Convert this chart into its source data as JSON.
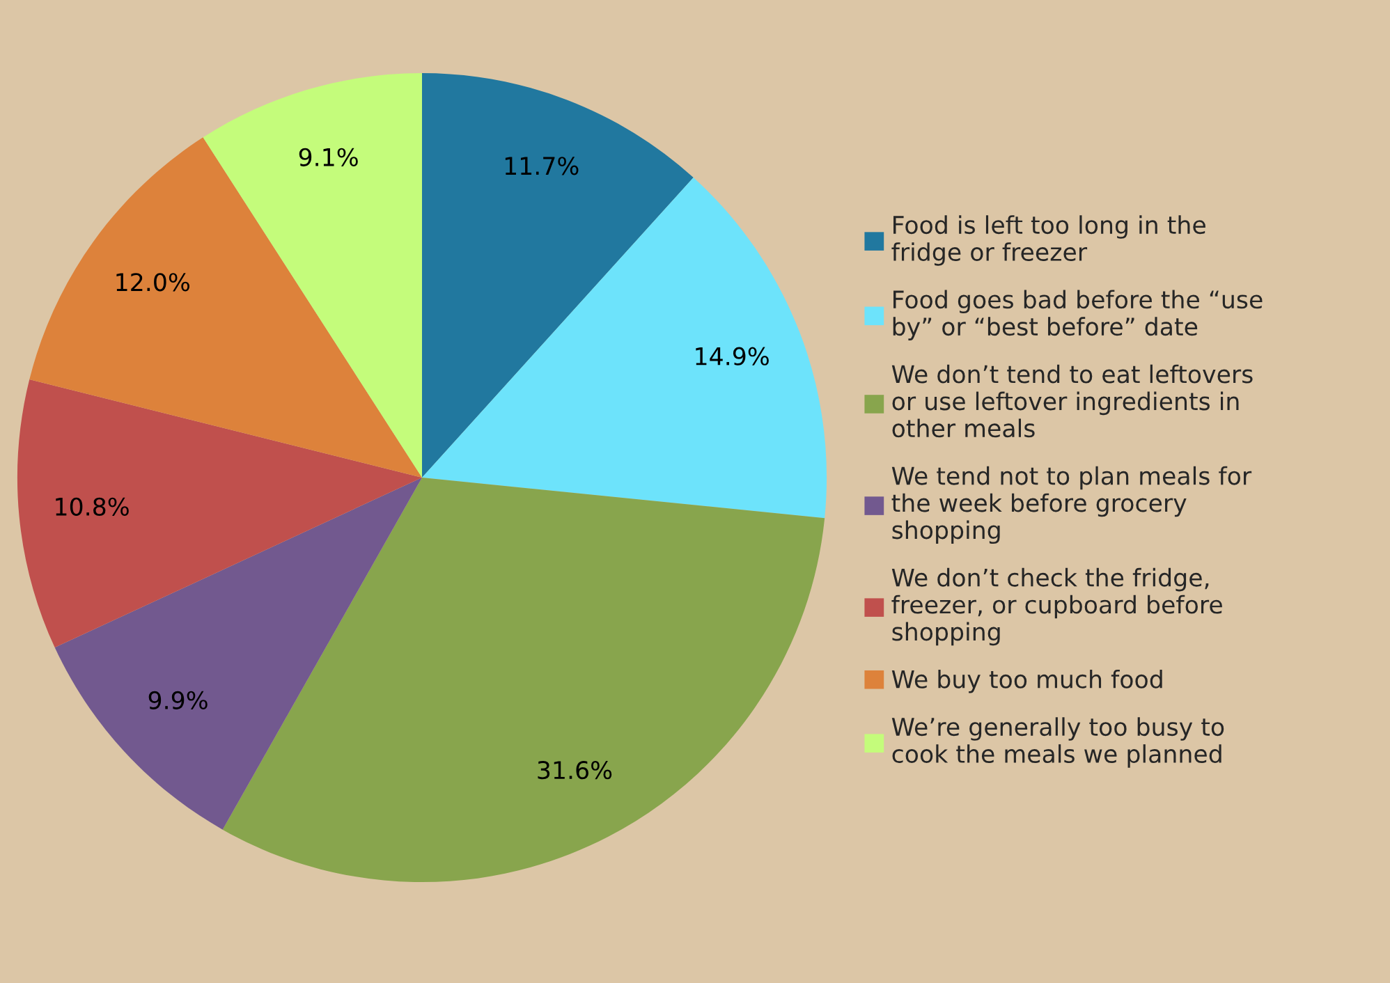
{
  "chart_data": {
    "type": "pie",
    "categories": [
      "Food is left too long in the fridge or freezer",
      "Food goes bad before the “use by” or “best before” date",
      "We don’t tend to eat leftovers or use leftover ingredients in other meals",
      "We tend not to plan meals for the week before grocery shopping",
      "We don’t check the fridge, freezer, or cupboard before shopping",
      "We buy too much food",
      "We’re generally too busy to cook the meals we planned"
    ],
    "values": [
      11.7,
      14.9,
      31.6,
      9.9,
      10.8,
      12.0,
      9.1
    ],
    "value_labels": [
      "11.7%",
      "14.9%",
      "31.6%",
      "9.9%",
      "10.8%",
      "12.0%",
      "9.1%"
    ],
    "colors": [
      "#21789f",
      "#6de3fb",
      "#88a54d",
      "#72598f",
      "#c0504d",
      "#dd823b",
      "#c4fc7b"
    ],
    "legend": "right"
  }
}
